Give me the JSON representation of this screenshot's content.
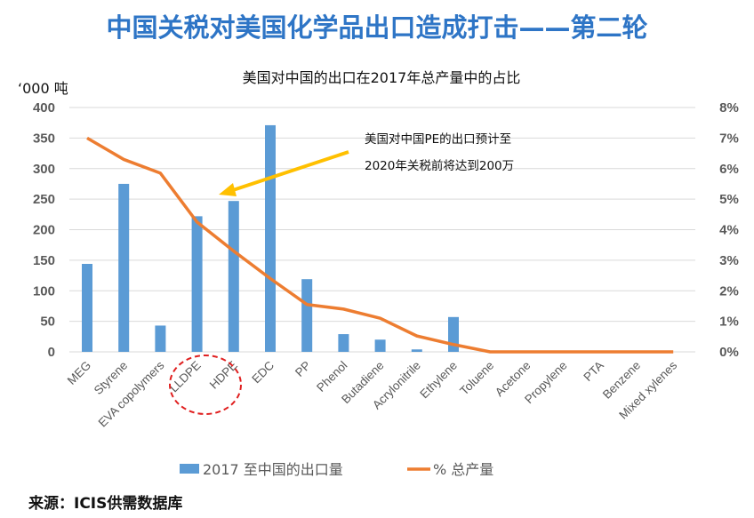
{
  "page_title": "中国关税对美国化学品出口造成打击——第二轮",
  "source": "来源：ICIS供需数据库",
  "chart_data": {
    "type": "bar+line",
    "title": "美国对中国的出口在2017年总产量中的占比",
    "ylabel_left": "‘000 吨",
    "categories": [
      "MEG",
      "Styrene",
      "EVA copolymers",
      "LLDPE",
      "HDPE",
      "EDC",
      "PP",
      "Phenol",
      "Butadiene",
      "Acrylonitrile",
      "Ethylene",
      "Toluene",
      "Acetone",
      "Propylene",
      "PTA",
      "Benzene",
      "Mixed xylenes"
    ],
    "series": [
      {
        "name": "2017 至中国的出口量",
        "type": "bar",
        "axis": "left",
        "color": "#5b9bd5",
        "values": [
          144,
          275,
          43,
          222,
          247,
          371,
          119,
          29,
          20,
          4,
          57,
          0,
          0,
          0,
          0,
          0,
          0
        ]
      },
      {
        "name": "% 总产量",
        "type": "line",
        "axis": "right",
        "color": "#ed7d31",
        "values": [
          7.0,
          6.3,
          5.85,
          4.25,
          3.3,
          2.4,
          1.55,
          1.4,
          1.1,
          0.52,
          0.24,
          0,
          0,
          0,
          0,
          0,
          0
        ]
      }
    ],
    "ylim_left": [
      0,
      400
    ],
    "yticks_left": [
      "0",
      "50",
      "100",
      "150",
      "200",
      "250",
      "300",
      "350",
      "400"
    ],
    "ylim_right": [
      0,
      8
    ],
    "yticks_right": [
      "0%",
      "1%",
      "2%",
      "3%",
      "4%",
      "5%",
      "6%",
      "7%",
      "8%"
    ],
    "grid": true,
    "legend": "bottom",
    "annotation": {
      "lines": [
        "美国对中国PE的出口预计至",
        "2020年关税前将达到200万"
      ],
      "arrow_color": "#ffc000",
      "points_to": "LLDPE/HDPE",
      "highlight_color": "#e02020",
      "highlighted": [
        "LLDPE",
        "HDPE"
      ]
    }
  }
}
